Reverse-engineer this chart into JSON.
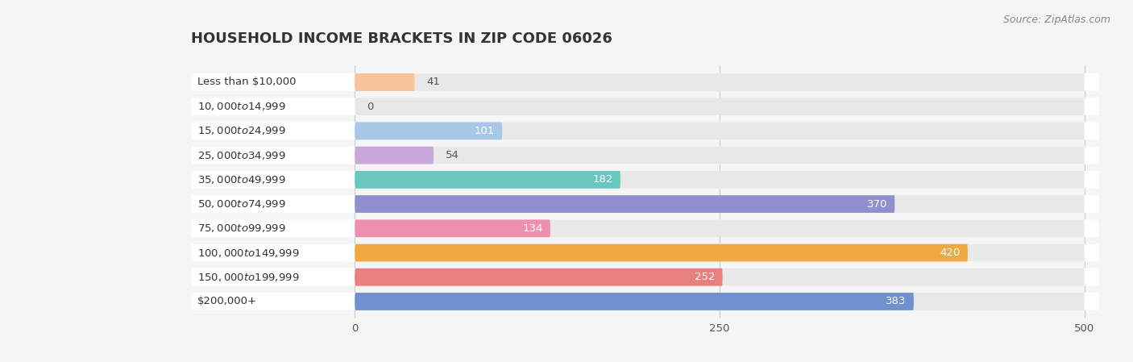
{
  "title": "Household Income Brackets in Zip Code 06026",
  "title_display": "HOUSEHOLD INCOME BRACKETS IN ZIP CODE 06026",
  "source_text": "Source: ZipAtlas.com",
  "categories": [
    "Less than $10,000",
    "$10,000 to $14,999",
    "$15,000 to $24,999",
    "$25,000 to $34,999",
    "$35,000 to $49,999",
    "$50,000 to $74,999",
    "$75,000 to $99,999",
    "$100,000 to $149,999",
    "$150,000 to $199,999",
    "$200,000+"
  ],
  "values": [
    41,
    0,
    101,
    54,
    182,
    370,
    134,
    420,
    252,
    383
  ],
  "bar_colors": [
    "#F9C49A",
    "#F4A0A0",
    "#A8C8E8",
    "#C8A8D8",
    "#68C8C0",
    "#9090D0",
    "#F090B0",
    "#F0A840",
    "#E88080",
    "#7090D0"
  ],
  "background_color": "#f5f5f5",
  "bar_bg_color": "#e8e8e8",
  "row_bg_color": "#ffffff",
  "xlim": [
    0,
    500
  ],
  "xticks": [
    0,
    250,
    500
  ],
  "label_fontsize": 9.5,
  "value_fontsize": 9.5,
  "title_fontsize": 13,
  "source_fontsize": 9,
  "bar_height": 0.72,
  "value_inside_threshold": 60
}
